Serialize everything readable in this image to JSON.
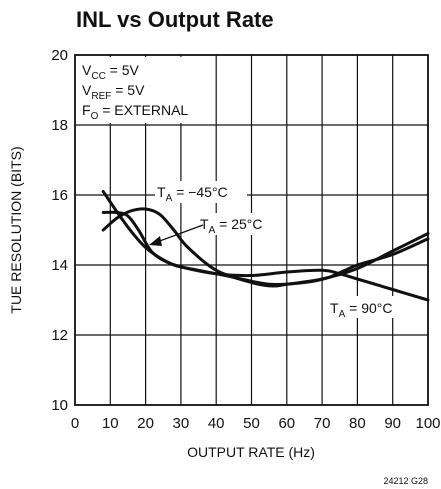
{
  "chart_data": {
    "type": "line",
    "title": "INL vs Output Rate",
    "xlabel": "OUTPUT RATE (Hz)",
    "ylabel": "TUE RESOLUTION (BITS)",
    "xlim": [
      0,
      100
    ],
    "ylim": [
      10,
      20
    ],
    "x_ticks": [
      "0",
      "10",
      "20",
      "30",
      "40",
      "50",
      "60",
      "70",
      "80",
      "90",
      "100"
    ],
    "y_ticks": [
      "10",
      "12",
      "14",
      "16",
      "18",
      "20"
    ],
    "grid": true,
    "conditions": [
      {
        "base": "V",
        "sub": "CC",
        "rest": " = 5V"
      },
      {
        "base": "V",
        "sub": "REF",
        "rest": " = 5V"
      },
      {
        "base": "F",
        "sub": "O",
        "rest": " = EXTERNAL"
      }
    ],
    "series": [
      {
        "label": {
          "base": "T",
          "sub": "A",
          "rest": " = −45°C"
        },
        "x": [
          8,
          12,
          16,
          20,
          24,
          28,
          32,
          40,
          50,
          56,
          60,
          70,
          80,
          90,
          100
        ],
        "y": [
          15.0,
          15.35,
          15.55,
          15.6,
          15.45,
          15.0,
          14.5,
          13.85,
          13.5,
          13.4,
          13.45,
          13.6,
          13.9,
          14.4,
          14.9
        ]
      },
      {
        "label": {
          "base": "T",
          "sub": "A",
          "rest": " = 25°C"
        },
        "x": [
          8,
          12,
          15,
          18,
          22,
          28,
          35,
          45,
          55,
          65,
          72,
          80,
          90,
          100
        ],
        "y": [
          15.5,
          15.5,
          15.4,
          15.0,
          14.35,
          14.0,
          13.85,
          13.65,
          13.45,
          13.5,
          13.65,
          14.0,
          14.3,
          14.75
        ]
      },
      {
        "label": {
          "base": "T",
          "sub": "A",
          "rest": " = 90°C"
        },
        "x": [
          8,
          12,
          16,
          20,
          25,
          30,
          40,
          50,
          60,
          70,
          75,
          80,
          90,
          100
        ],
        "y": [
          16.1,
          15.5,
          14.95,
          14.5,
          14.15,
          13.95,
          13.75,
          13.7,
          13.8,
          13.85,
          13.75,
          13.6,
          13.3,
          13.0
        ]
      }
    ],
    "figure_code": "24212 G28"
  }
}
